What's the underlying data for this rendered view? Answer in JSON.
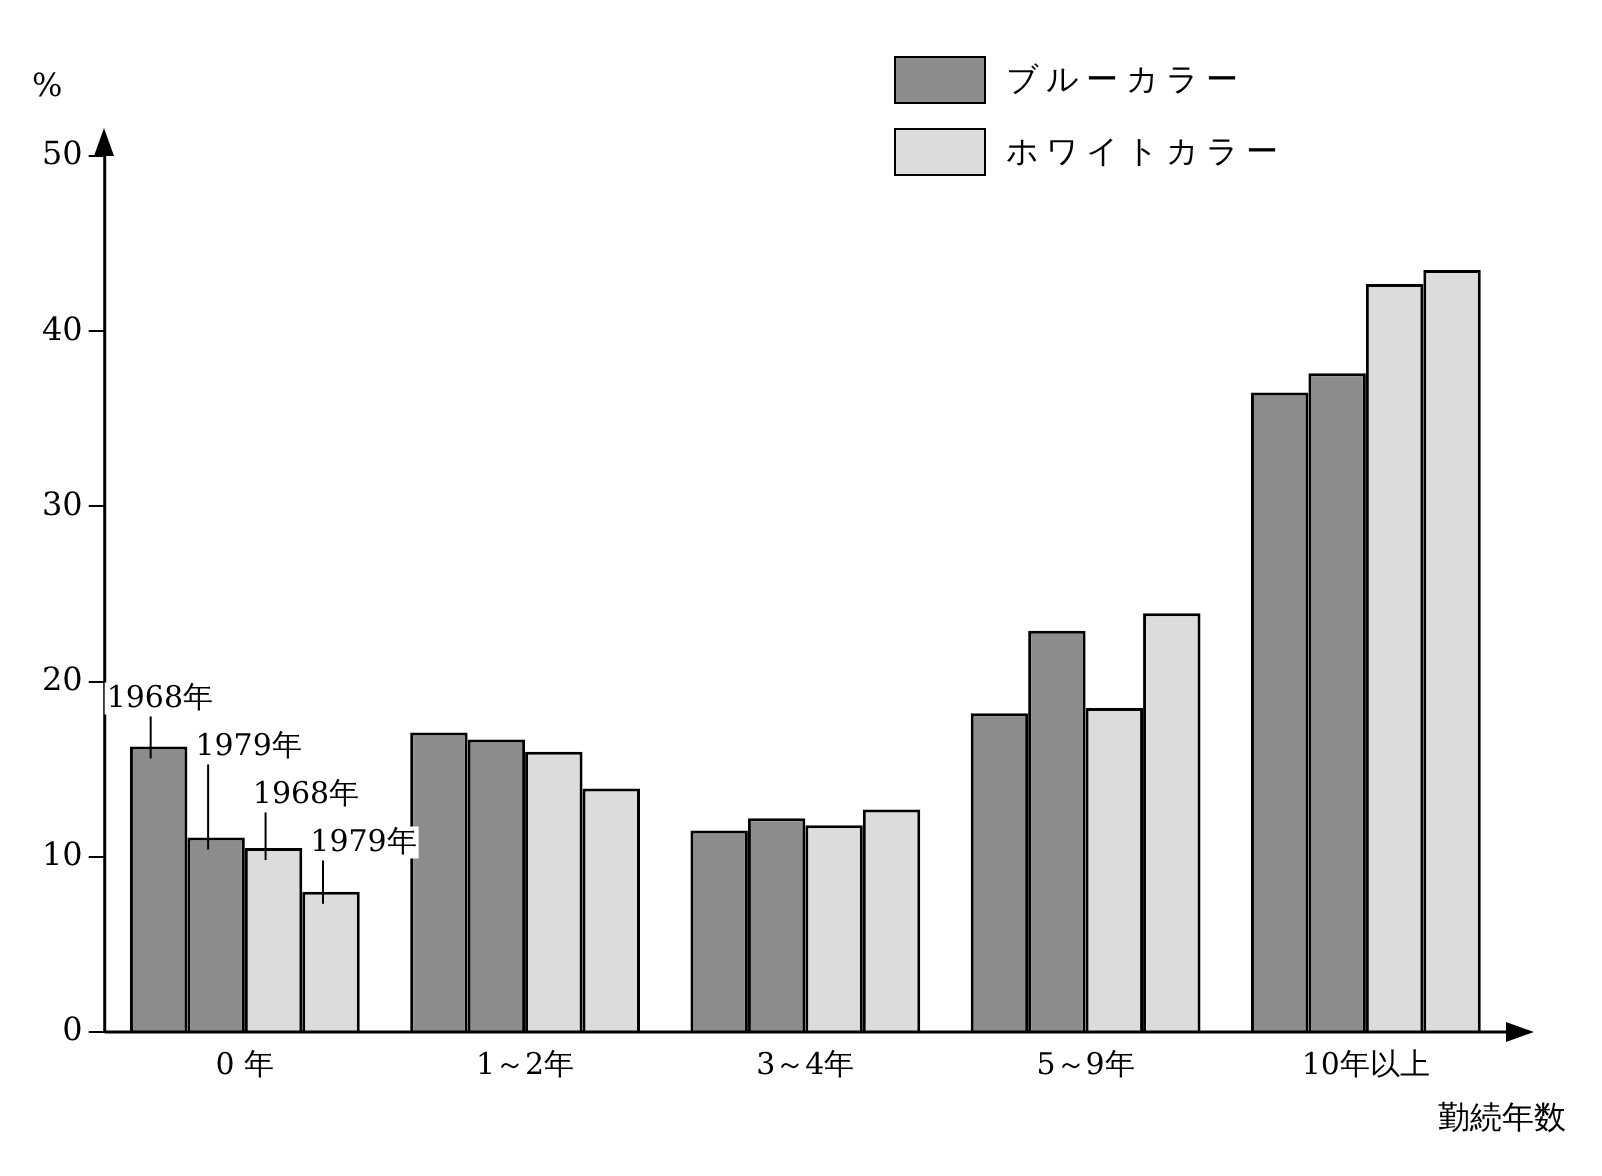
{
  "chart_data": {
    "type": "bar",
    "ylabel": "%",
    "xlabel": "勤続年数",
    "categories": [
      "0 年",
      "1～2年",
      "3～4年",
      "5～9年",
      "10年以上"
    ],
    "series": [
      {
        "name": "ブルーカラー",
        "color": "#8c8c8c",
        "values": [
          16.3,
          17.1,
          11.5,
          18.2,
          36.5
        ]
      },
      {
        "color": "#8c8c8c",
        "values": [
          11.1,
          16.7,
          12.2,
          22.9,
          37.6
        ]
      },
      {
        "name": "ホワイトカラー",
        "color": "#dcdcdc",
        "values": [
          10.5,
          16.0,
          11.8,
          18.5,
          42.7
        ]
      },
      {
        "color": "#dcdcdc",
        "values": [
          8.0,
          13.9,
          12.7,
          23.9,
          43.5
        ]
      }
    ],
    "ylim": [
      0,
      50
    ],
    "yticks": [
      0,
      10,
      20,
      30,
      40,
      50
    ],
    "grid": false,
    "legend": "top right",
    "annotations": [
      "1968年",
      "1979年",
      "1968年",
      "1979年"
    ]
  }
}
